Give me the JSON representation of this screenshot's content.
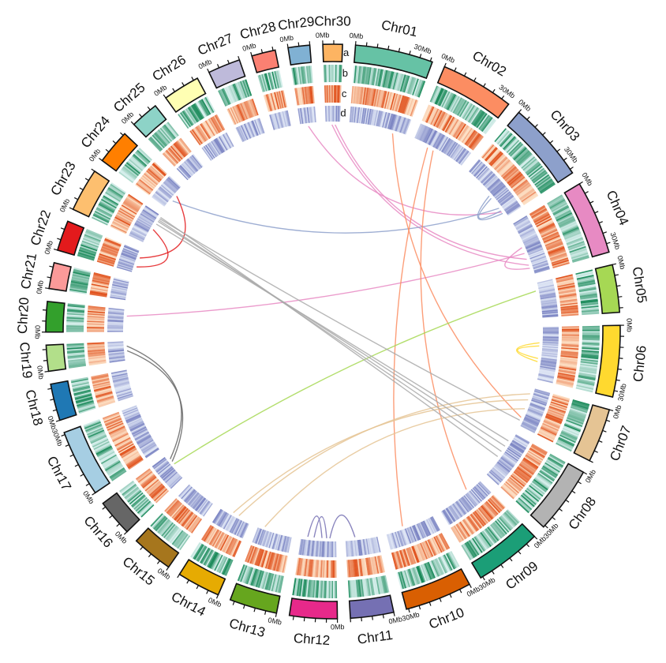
{
  "chart_data": {
    "type": "circos",
    "title": "",
    "track_labels": [
      "a",
      "b",
      "c",
      "d"
    ],
    "tick_labels": {
      "start": "0Mb",
      "end": "30Mb"
    },
    "chromosomes": [
      {
        "name": "Chr01",
        "length": 36,
        "color": "#66c2a5"
      },
      {
        "name": "Chr02",
        "length": 34,
        "color": "#fc8d62"
      },
      {
        "name": "Chr03",
        "length": 37,
        "color": "#8da0cb"
      },
      {
        "name": "Chr04",
        "length": 34,
        "color": "#e78ac3"
      },
      {
        "name": "Chr05",
        "length": 22,
        "color": "#a6d854"
      },
      {
        "name": "Chr06",
        "length": 33,
        "color": "#ffd92f"
      },
      {
        "name": "Chr07",
        "length": 25,
        "color": "#e5c494"
      },
      {
        "name": "Chr08",
        "length": 31,
        "color": "#b3b3b3"
      },
      {
        "name": "Chr09",
        "length": 31,
        "color": "#1b9e77"
      },
      {
        "name": "Chr10",
        "length": 31,
        "color": "#d95f02"
      },
      {
        "name": "Chr11",
        "length": 20,
        "color": "#7570b3"
      },
      {
        "name": "Chr12",
        "length": 22,
        "color": "#e7298a"
      },
      {
        "name": "Chr13",
        "length": 22,
        "color": "#66a61e"
      },
      {
        "name": "Chr14",
        "length": 20,
        "color": "#e6ab02"
      },
      {
        "name": "Chr15",
        "length": 19,
        "color": "#a6761d"
      },
      {
        "name": "Chr16",
        "length": 17,
        "color": "#666666"
      },
      {
        "name": "Chr17",
        "length": 31,
        "color": "#a6cee3"
      },
      {
        "name": "Chr18",
        "length": 17,
        "color": "#1f78b4"
      },
      {
        "name": "Chr19",
        "length": 12,
        "color": "#b2df8a"
      },
      {
        "name": "Chr20",
        "length": 14,
        "color": "#33a02c"
      },
      {
        "name": "Chr21",
        "length": 12,
        "color": "#fb9a99"
      },
      {
        "name": "Chr22",
        "length": 14,
        "color": "#e31a1c"
      },
      {
        "name": "Chr23",
        "length": 20,
        "color": "#fdbf6f"
      },
      {
        "name": "Chr24",
        "length": 16,
        "color": "#ff7f00"
      },
      {
        "name": "Chr25",
        "length": 13,
        "color": "#8dd3c7"
      },
      {
        "name": "Chr26",
        "length": 17,
        "color": "#ffffb3"
      },
      {
        "name": "Chr27",
        "length": 15,
        "color": "#bebada"
      },
      {
        "name": "Chr28",
        "length": 11,
        "color": "#fb8072"
      },
      {
        "name": "Chr29",
        "length": 10,
        "color": "#80b1d3"
      },
      {
        "name": "Chr30",
        "length": 9,
        "color": "#fdb462"
      }
    ],
    "links": [
      {
        "from": [
          "Chr30",
          4
        ],
        "to": [
          "Chr04",
          28
        ],
        "color": "#e78ac3"
      },
      {
        "from": [
          "Chr30",
          6
        ],
        "to": [
          "Chr04",
          24
        ],
        "color": "#e78ac3"
      },
      {
        "from": [
          "Chr29",
          5
        ],
        "to": [
          "Chr03",
          33
        ],
        "color": "#e78ac3"
      },
      {
        "from": [
          "Chr04",
          20
        ],
        "to": [
          "Chr20",
          10
        ],
        "color": "#e78ac3"
      },
      {
        "from": [
          "Chr04",
          30
        ],
        "to": [
          "Chr04",
          16
        ],
        "color": "#e78ac3"
      },
      {
        "from": [
          "Chr03",
          30
        ],
        "to": [
          "Chr24",
          6
        ],
        "color": "#8da0cb"
      },
      {
        "from": [
          "Chr03",
          34
        ],
        "to": [
          "Chr03",
          20
        ],
        "color": "#8da0cb"
      },
      {
        "from": [
          "Chr03",
          32
        ],
        "to": [
          "Chr03",
          22
        ],
        "color": "#8da0cb"
      },
      {
        "from": [
          "Chr02",
          10
        ],
        "to": [
          "Chr10",
          20
        ],
        "color": "#fc8d62"
      },
      {
        "from": [
          "Chr02",
          14
        ],
        "to": [
          "Chr09",
          10
        ],
        "color": "#fc8d62"
      },
      {
        "from": [
          "Chr01",
          28
        ],
        "to": [
          "Chr07",
          20
        ],
        "color": "#fc8d62"
      },
      {
        "from": [
          "Chr05",
          5
        ],
        "to": [
          "Chr16",
          10
        ],
        "color": "#a6d854"
      },
      {
        "from": [
          "Chr06",
          10
        ],
        "to": [
          "Chr06",
          22
        ],
        "color": "#ffd92f"
      },
      {
        "from": [
          "Chr06",
          12
        ],
        "to": [
          "Chr06",
          20
        ],
        "color": "#ffd92f"
      },
      {
        "from": [
          "Chr07",
          4
        ],
        "to": [
          "Chr14",
          8
        ],
        "color": "#e5c494"
      },
      {
        "from": [
          "Chr07",
          8
        ],
        "to": [
          "Chr14",
          12
        ],
        "color": "#e5c494"
      },
      {
        "from": [
          "Chr07",
          14
        ],
        "to": [
          "Chr13",
          18
        ],
        "color": "#e5c494"
      },
      {
        "from": [
          "Chr22",
          4
        ],
        "to": [
          "Chr23",
          10
        ],
        "color": "#e31a1c"
      },
      {
        "from": [
          "Chr22",
          10
        ],
        "to": [
          "Chr24",
          10
        ],
        "color": "#e31a1c"
      },
      {
        "from": [
          "Chr23",
          14
        ],
        "to": [
          "Chr08",
          6
        ],
        "color": "#aaaaaa"
      },
      {
        "from": [
          "Chr23",
          16
        ],
        "to": [
          "Chr08",
          10
        ],
        "color": "#aaaaaa"
      },
      {
        "from": [
          "Chr23",
          17
        ],
        "to": [
          "Chr08",
          14
        ],
        "color": "#aaaaaa"
      },
      {
        "from": [
          "Chr23",
          18
        ],
        "to": [
          "Chr07",
          22
        ],
        "color": "#aaaaaa"
      },
      {
        "from": [
          "Chr23",
          19
        ],
        "to": [
          "Chr08",
          18
        ],
        "color": "#aaaaaa"
      },
      {
        "from": [
          "Chr19",
          6
        ],
        "to": [
          "Chr16",
          12
        ],
        "color": "#666666"
      },
      {
        "from": [
          "Chr19",
          9
        ],
        "to": [
          "Chr16",
          14
        ],
        "color": "#666666"
      },
      {
        "from": [
          "Chr12",
          6
        ],
        "to": [
          "Chr12",
          14
        ],
        "color": "#7570b3"
      },
      {
        "from": [
          "Chr12",
          4
        ],
        "to": [
          "Chr11",
          14
        ],
        "color": "#7570b3"
      },
      {
        "from": [
          "Chr12",
          9
        ],
        "to": [
          "Chr12",
          18
        ],
        "color": "#7570b3"
      }
    ]
  }
}
